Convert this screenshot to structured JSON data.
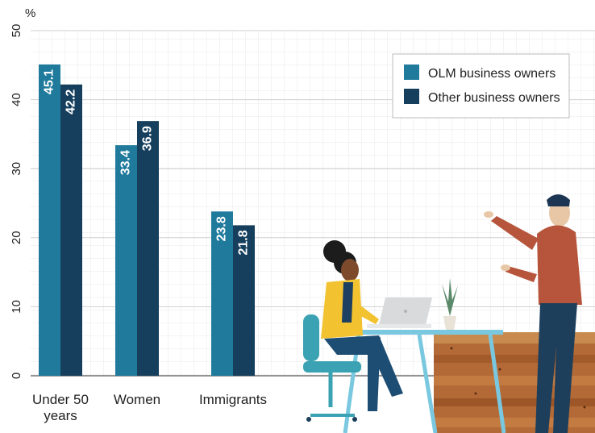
{
  "chart_data": {
    "type": "bar",
    "ylabel": "%",
    "ylim": [
      0,
      50
    ],
    "yticks": [
      0,
      10,
      20,
      30,
      40,
      50
    ],
    "grid": true,
    "legend_position": "top-right",
    "categories": [
      "Under 50 years",
      "Women",
      "Immigrants"
    ],
    "category_lines": [
      [
        "Under 50",
        "years"
      ],
      [
        "Women"
      ],
      [
        "Immigrants"
      ]
    ],
    "series": [
      {
        "name": "OLM business owners",
        "color": "#1f7a9c",
        "values": [
          45.1,
          33.4,
          23.8
        ]
      },
      {
        "name": "Other business owners",
        "color": "#163f5e",
        "values": [
          42.2,
          36.9,
          21.8
        ]
      }
    ]
  },
  "illustration": {
    "desc_icon": "office-workers-illustration-icon"
  }
}
